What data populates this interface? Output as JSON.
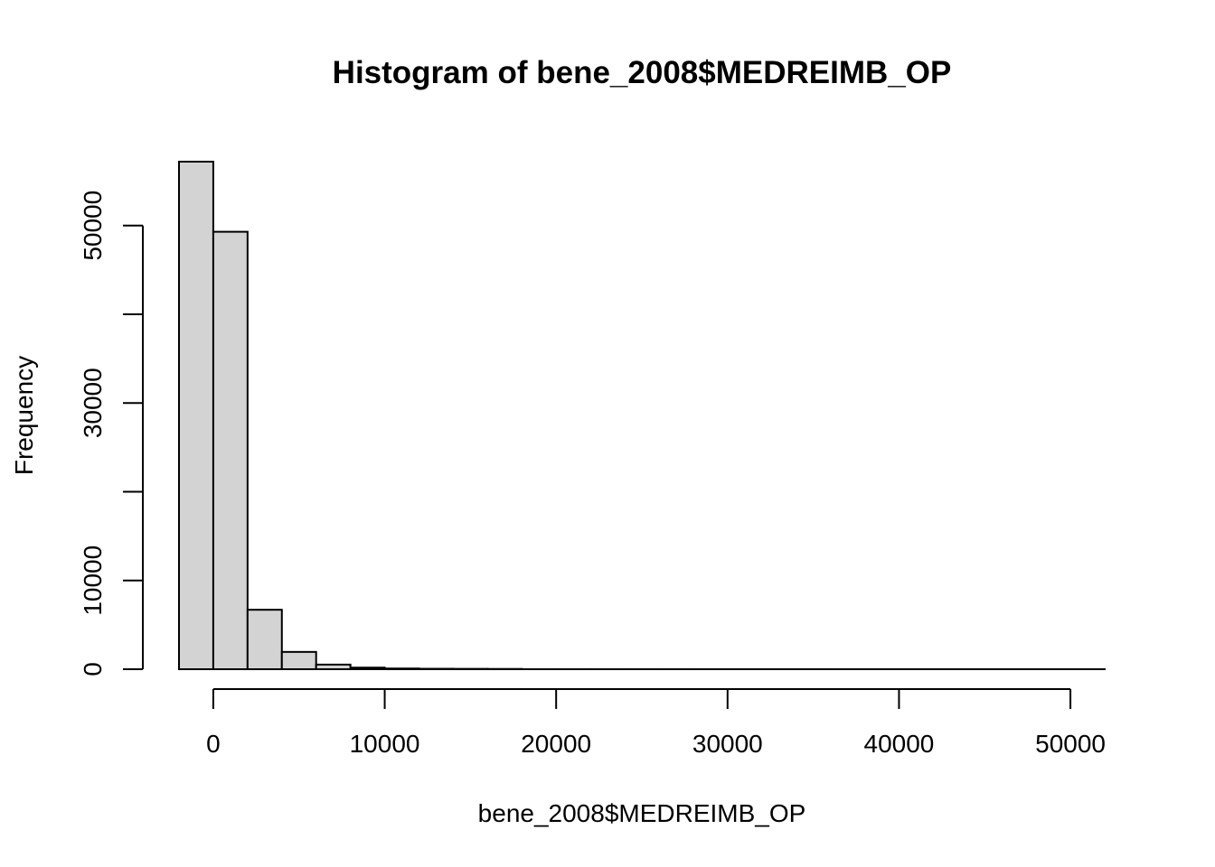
{
  "chart_data": {
    "type": "bar",
    "title": "Histogram of bene_2008$MEDREIMB_OP",
    "xlabel": "bene_2008$MEDREIMB_OP",
    "ylabel": "Frequency",
    "bin_edges": [
      -2000,
      0,
      2000,
      4000,
      6000,
      8000,
      10000,
      12000,
      14000,
      16000,
      18000,
      20000,
      22000,
      24000,
      26000,
      28000,
      30000,
      32000,
      34000,
      36000,
      38000,
      40000,
      42000,
      44000,
      46000,
      48000,
      50000,
      52000
    ],
    "values": [
      57200,
      49300,
      6700,
      1950,
      520,
      180,
      80,
      50,
      40,
      30,
      5,
      5,
      5,
      3,
      3,
      2,
      2,
      2,
      2,
      1,
      1,
      1,
      1,
      1,
      1,
      1,
      1
    ],
    "x_ticks": [
      0,
      10000,
      20000,
      30000,
      40000,
      50000
    ],
    "x_tick_labels": [
      "0",
      "10000",
      "20000",
      "30000",
      "40000",
      "50000"
    ],
    "y_ticks": [
      0,
      10000,
      20000,
      30000,
      40000,
      50000
    ],
    "y_tick_labels": [
      "0",
      "10000",
      "",
      "30000",
      "",
      "50000"
    ],
    "xlim": [
      -2000,
      52000
    ],
    "ylim": [
      0,
      57200
    ],
    "bar_fill": "#d3d3d3",
    "bar_stroke": "#000000",
    "grid": false,
    "legend": "none"
  }
}
